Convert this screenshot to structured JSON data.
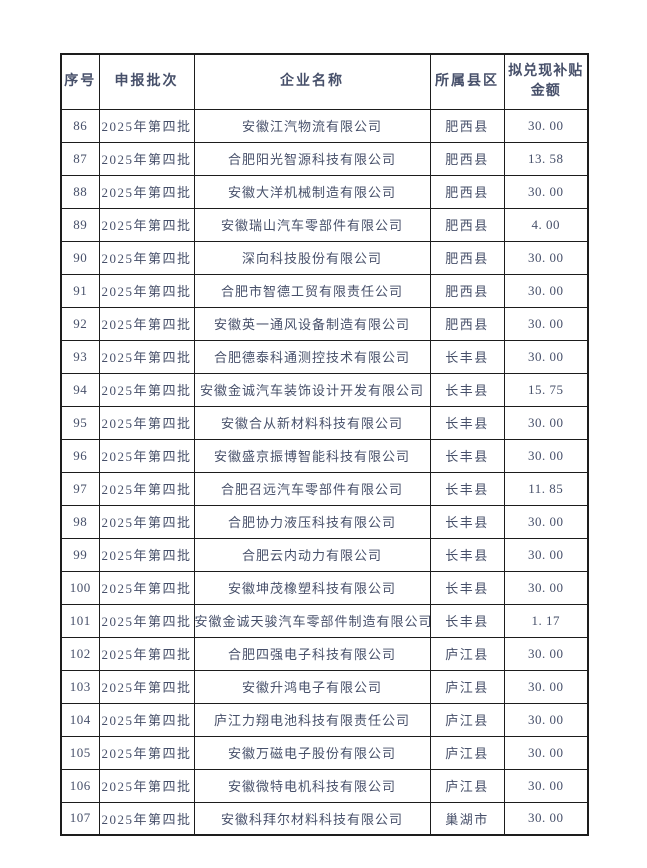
{
  "document": {
    "background": "#ffffff",
    "text_color": "#47506a",
    "border_color": "#1d1d1d"
  },
  "table": {
    "columns": [
      {
        "key": "index",
        "label": "序号"
      },
      {
        "key": "batch",
        "label": "申报批次"
      },
      {
        "key": "company",
        "label": "企业名称"
      },
      {
        "key": "district",
        "label": "所属县区"
      },
      {
        "key": "amount",
        "label": "拟兑现补贴金额"
      }
    ],
    "rows": [
      [
        "86",
        "2025年第四批",
        "安徽江汽物流有限公司",
        "肥西县",
        "30. 00"
      ],
      [
        "87",
        "2025年第四批",
        "合肥阳光智源科技有限公司",
        "肥西县",
        "13. 58"
      ],
      [
        "88",
        "2025年第四批",
        "安徽大洋机械制造有限公司",
        "肥西县",
        "30. 00"
      ],
      [
        "89",
        "2025年第四批",
        "安徽瑞山汽车零部件有限公司",
        "肥西县",
        "4. 00"
      ],
      [
        "90",
        "2025年第四批",
        "深向科技股份有限公司",
        "肥西县",
        "30. 00"
      ],
      [
        "91",
        "2025年第四批",
        "合肥市智德工贸有限责任公司",
        "肥西县",
        "30. 00"
      ],
      [
        "92",
        "2025年第四批",
        "安徽英一通风设备制造有限公司",
        "肥西县",
        "30. 00"
      ],
      [
        "93",
        "2025年第四批",
        "合肥德泰科通测控技术有限公司",
        "长丰县",
        "30. 00"
      ],
      [
        "94",
        "2025年第四批",
        "安徽金诚汽车装饰设计开发有限公司",
        "长丰县",
        "15. 75"
      ],
      [
        "95",
        "2025年第四批",
        "安徽合从新材料科技有限公司",
        "长丰县",
        "30. 00"
      ],
      [
        "96",
        "2025年第四批",
        "安徽盛京振博智能科技有限公司",
        "长丰县",
        "30. 00"
      ],
      [
        "97",
        "2025年第四批",
        "合肥召远汽车零部件有限公司",
        "长丰县",
        "11. 85"
      ],
      [
        "98",
        "2025年第四批",
        "合肥协力液压科技有限公司",
        "长丰县",
        "30. 00"
      ],
      [
        "99",
        "2025年第四批",
        "合肥云内动力有限公司",
        "长丰县",
        "30. 00"
      ],
      [
        "100",
        "2025年第四批",
        "安徽坤茂橡塑科技有限公司",
        "长丰县",
        "30. 00"
      ],
      [
        "101",
        "2025年第四批",
        "安徽金诚天骏汽车零部件制造有限公司",
        "长丰县",
        "1. 17"
      ],
      [
        "102",
        "2025年第四批",
        "合肥四强电子科技有限公司",
        "庐江县",
        "30. 00"
      ],
      [
        "103",
        "2025年第四批",
        "安徽升鸿电子有限公司",
        "庐江县",
        "30. 00"
      ],
      [
        "104",
        "2025年第四批",
        "庐江力翔电池科技有限责任公司",
        "庐江县",
        "30. 00"
      ],
      [
        "105",
        "2025年第四批",
        "安徽万磁电子股份有限公司",
        "庐江县",
        "30. 00"
      ],
      [
        "106",
        "2025年第四批",
        "安徽微特电机科技有限公司",
        "庐江县",
        "30. 00"
      ],
      [
        "107",
        "2025年第四批",
        "安徽科拜尔材料科技有限公司",
        "巢湖市",
        "30. 00"
      ]
    ]
  }
}
